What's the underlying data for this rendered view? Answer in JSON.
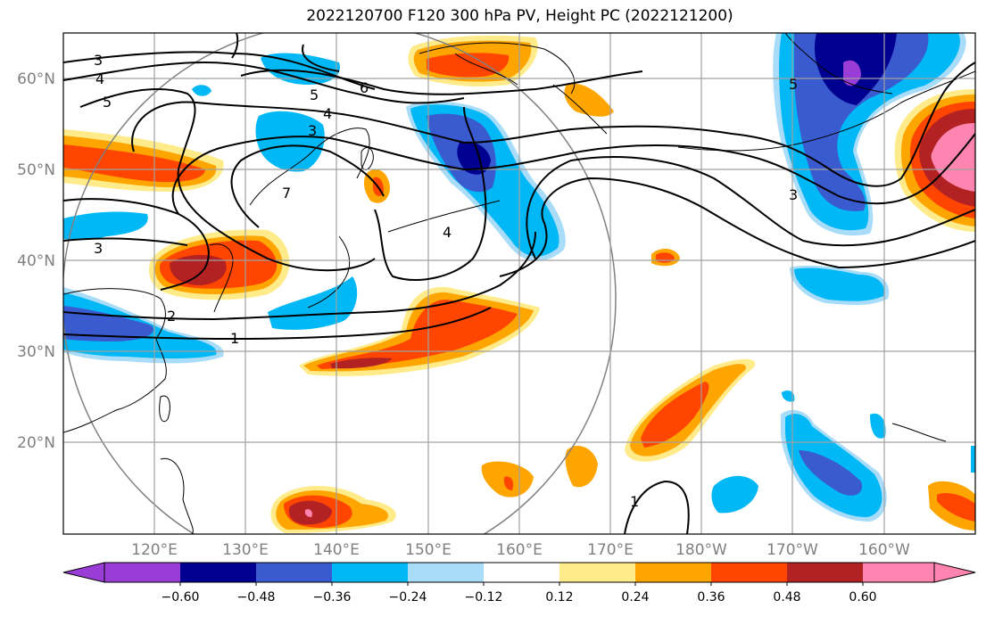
{
  "title": "2022120700 F120 300 hPa PV, Height PC (2022121200)",
  "lat_ticks": [
    "60°N",
    "50°N",
    "40°N",
    "30°N",
    "20°N"
  ],
  "lon_ticks": [
    "120°E",
    "130°E",
    "140°E",
    "150°E",
    "160°E",
    "170°E",
    "180°W",
    "170°W",
    "160°W"
  ],
  "colorbar": {
    "colors": [
      "#9a3dd6",
      "#000090",
      "#3a5ad0",
      "#00b8f5",
      "#a8dcf8",
      "#ffffff",
      "#ffeb8a",
      "#ffa500",
      "#ff4500",
      "#b22222",
      "#ff85b0"
    ],
    "labels": [
      "−0.60",
      "−0.48",
      "−0.36",
      "−0.24",
      "−0.12",
      "0.12",
      "0.24",
      "0.36",
      "0.48",
      "0.60"
    ]
  },
  "contour_labels": [
    "3",
    "4",
    "5",
    "6",
    "5",
    "4",
    "3",
    "2",
    "1",
    "7",
    "4",
    "3",
    "5",
    "3",
    "1"
  ],
  "colors": {
    "contour": "#000000",
    "grid": "#a0a0a0",
    "circle": "#808080"
  }
}
